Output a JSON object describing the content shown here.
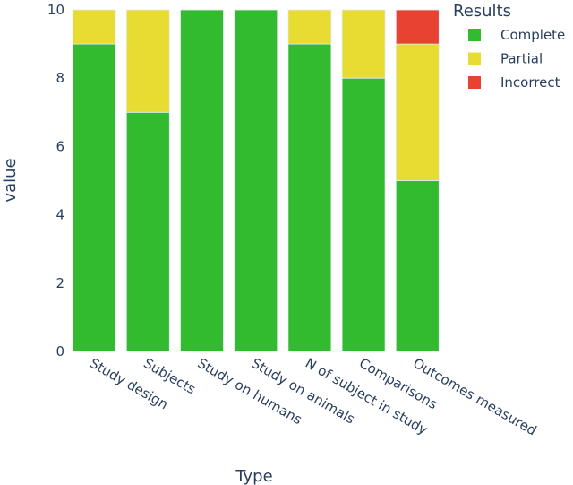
{
  "chart_data": {
    "type": "bar",
    "barmode": "stack",
    "title": "",
    "xlabel": "Type",
    "ylabel": "value",
    "ylim": [
      0,
      10
    ],
    "yticks": [
      0,
      2,
      4,
      6,
      8,
      10
    ],
    "grid": false,
    "legend_title": "Results",
    "legend_position": "top-right",
    "categories": [
      "Study design",
      "Subjects",
      "Study on humans",
      "Study on animals",
      "N of subject in study",
      "Comparisons",
      "Outcomes measured"
    ],
    "series": [
      {
        "name": "Complete",
        "color": "#33bb30",
        "values": [
          9,
          7,
          10,
          10,
          9,
          8,
          5
        ]
      },
      {
        "name": "Partial",
        "color": "#e8dc32",
        "values": [
          1,
          3,
          0,
          0,
          1,
          2,
          4
        ]
      },
      {
        "name": "Incorrect",
        "color": "#e84233",
        "values": [
          0,
          0,
          0,
          0,
          0,
          0,
          1
        ]
      }
    ]
  }
}
